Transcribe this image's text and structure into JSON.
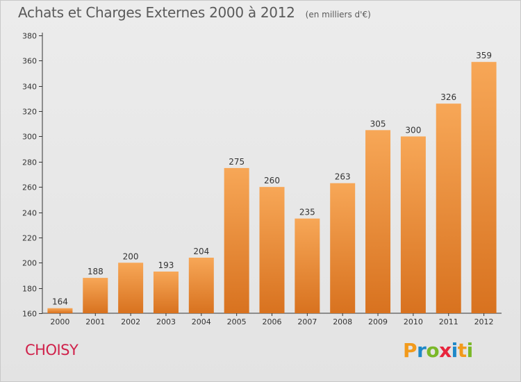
{
  "chart_title": "Achats et Charges Externes 2000 à 2012",
  "chart_subtitle": "(en milliers d'€)",
  "commune": "CHOISY",
  "brand": {
    "letters": [
      "P",
      "r",
      "o",
      "x",
      "i",
      "t",
      "i"
    ],
    "colors": [
      "#f29a1b",
      "#1e88c8",
      "#7ab828",
      "#e8243c",
      "#1e88c8",
      "#f29a1b",
      "#7ab828"
    ]
  },
  "colors": {
    "bar_top": "#f7a757",
    "bar_bottom": "#d8721f",
    "title": "#5a5a5a",
    "commune": "#d0214a"
  },
  "chart_data": {
    "type": "bar",
    "categories": [
      "2000",
      "2001",
      "2002",
      "2003",
      "2004",
      "2005",
      "2006",
      "2007",
      "2008",
      "2009",
      "2010",
      "2011",
      "2012"
    ],
    "values": [
      164,
      188,
      200,
      193,
      204,
      275,
      260,
      235,
      263,
      305,
      300,
      326,
      359
    ],
    "title": "Achats et Charges Externes 2000 à 2012",
    "subtitle": "(en milliers d'€)",
    "xlabel": "",
    "ylabel": "",
    "ylim": [
      160,
      380
    ],
    "yticks": [
      160,
      180,
      200,
      220,
      240,
      260,
      280,
      300,
      320,
      340,
      360,
      380
    ],
    "grid": false,
    "legend": "none"
  }
}
